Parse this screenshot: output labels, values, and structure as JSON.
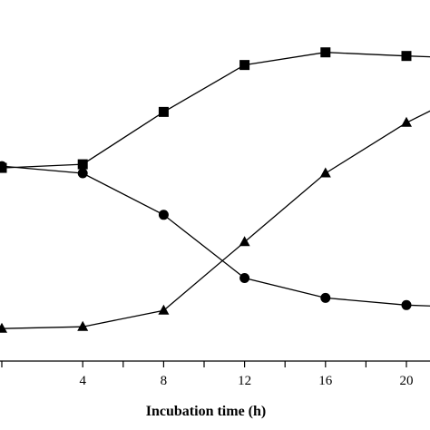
{
  "chart_data": {
    "type": "line",
    "xlabel": "Incubation time (h)",
    "ylabel": "",
    "title": "",
    "xlim": [
      0,
      22.5
    ],
    "ylim": [
      0,
      1
    ],
    "x_ticks": [
      4,
      8,
      12,
      16,
      20
    ],
    "grid": false,
    "legend": "none",
    "series": [
      {
        "marker": "square",
        "color": "#000000",
        "points": [
          [
            0,
            0.535
          ],
          [
            4,
            0.545
          ],
          [
            8,
            0.69
          ],
          [
            12,
            0.82
          ],
          [
            16,
            0.855
          ],
          [
            20,
            0.845
          ],
          [
            22.5,
            0.84
          ]
        ]
      },
      {
        "marker": "circle",
        "color": "#000000",
        "points": [
          [
            0,
            0.54
          ],
          [
            4,
            0.52
          ],
          [
            8,
            0.405
          ],
          [
            12,
            0.23
          ],
          [
            16,
            0.175
          ],
          [
            20,
            0.155
          ],
          [
            22.5,
            0.15
          ]
        ]
      },
      {
        "marker": "triangle",
        "color": "#000000",
        "points": [
          [
            0,
            0.09
          ],
          [
            4,
            0.095
          ],
          [
            8,
            0.14
          ],
          [
            12,
            0.33
          ],
          [
            16,
            0.52
          ],
          [
            20,
            0.66
          ],
          [
            22.5,
            0.73
          ]
        ]
      }
    ]
  }
}
